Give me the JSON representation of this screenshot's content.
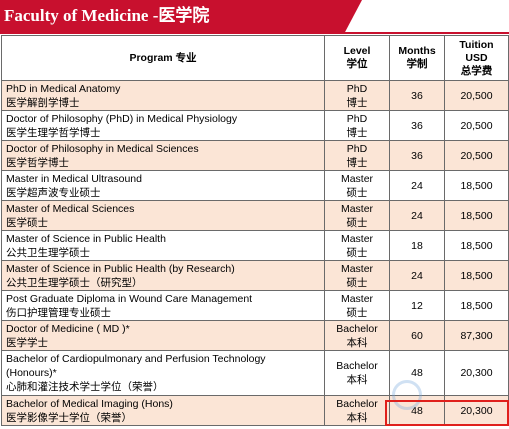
{
  "header": {
    "title": "Faculty of Medicine -医学院"
  },
  "table": {
    "columns": [
      {
        "line1": "Program  专业"
      },
      {
        "line1": "Level",
        "line2": "学位"
      },
      {
        "line1": "Months",
        "line2": "学制"
      },
      {
        "line1": "Tuition",
        "line2": "USD",
        "line3": "总学费"
      }
    ],
    "rows": [
      {
        "en": "PhD in Medical Anatomy",
        "cn": "医学解剖学博士",
        "level_en": "PhD",
        "level_cn": "博士",
        "months": "36",
        "tuition": "20,500"
      },
      {
        "en": "Doctor of Philosophy (PhD) in Medical Physiology",
        "cn": "医学生理学哲学博士",
        "level_en": "PhD",
        "level_cn": "博士",
        "months": "36",
        "tuition": "20,500"
      },
      {
        "en": "Doctor of Philosophy in Medical Sciences",
        "cn": "医学哲学博士",
        "level_en": "PhD",
        "level_cn": "博士",
        "months": "36",
        "tuition": "20,500"
      },
      {
        "en": "Master in Medical Ultrasound",
        "cn": "医学超声波专业硕士",
        "level_en": "Master",
        "level_cn": "硕士",
        "months": "24",
        "tuition": "18,500"
      },
      {
        "en": "Master of Medical Sciences",
        "cn": "医学硕士",
        "level_en": "Master",
        "level_cn": "硕士",
        "months": "24",
        "tuition": "18,500"
      },
      {
        "en": "Master of Science in Public Health",
        "cn": "公共卫生理学硕士",
        "level_en": "Master",
        "level_cn": "硕士",
        "months": "18",
        "tuition": "18,500"
      },
      {
        "en": "Master of Science in Public Health (by Research)",
        "cn": "公共卫生理学硕士（研究型）",
        "level_en": "Master",
        "level_cn": "硕士",
        "months": "24",
        "tuition": "18,500"
      },
      {
        "en": "Post Graduate Diploma in Wound Care Management",
        "cn": "伤口护理管理专业硕士",
        "level_en": "Master",
        "level_cn": "硕士",
        "months": "12",
        "tuition": "18,500"
      },
      {
        "en": "Doctor of Medicine ( MD )*",
        "cn": "医学学士",
        "level_en": "Bachelor",
        "level_cn": "本科",
        "months": "60",
        "tuition": "87,300"
      },
      {
        "en": "Bachelor of Cardiopulmonary and Perfusion Technology",
        "en2": "(Honours)*",
        "cn": "心肺和灌注技术学士学位（荣誉）",
        "level_en": "Bachelor",
        "level_cn": "本科",
        "months": "48",
        "tuition": "20,300"
      },
      {
        "en": "Bachelor of Medical Imaging (Hons)",
        "cn": "医学影像学士学位（荣誉）",
        "level_en": "Bachelor",
        "level_cn": "本科",
        "months": "48",
        "tuition": "20,300"
      }
    ]
  }
}
